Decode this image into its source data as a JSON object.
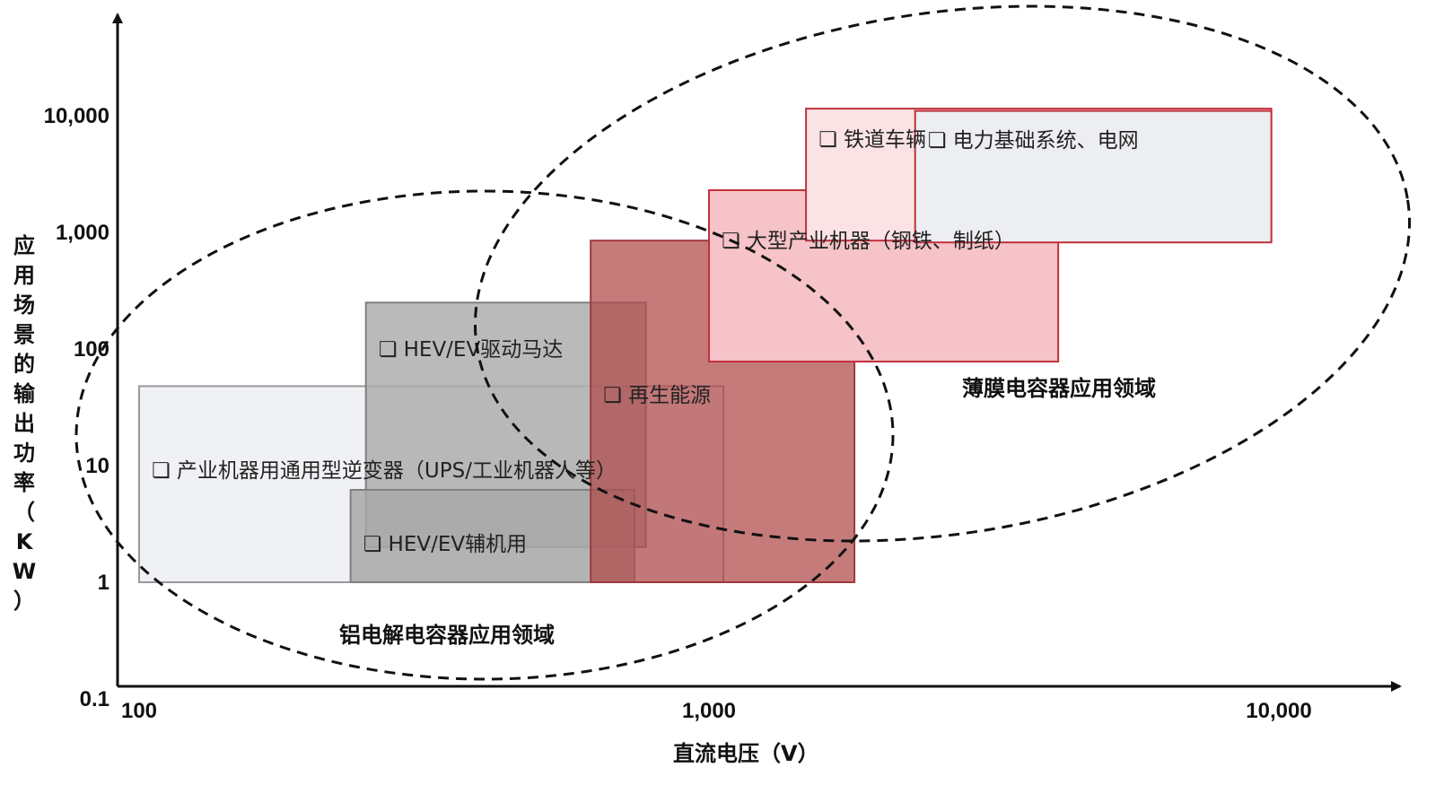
{
  "chart_data": {
    "type": "region-map",
    "xlabel": "直流电压（V）",
    "ylabel": "应用场景的输出功率（KW）",
    "x_scale": "log",
    "y_scale": "log",
    "xlim": [
      100,
      10000
    ],
    "ylim": [
      0.1,
      10000
    ],
    "x_ticks": [
      {
        "value": 100,
        "label": "100"
      },
      {
        "value": 1000,
        "label": "1,000"
      },
      {
        "value": 10000,
        "label": "10,000"
      }
    ],
    "y_ticks": [
      {
        "value": 0.1,
        "label": "0.1"
      },
      {
        "value": 1,
        "label": "1"
      },
      {
        "value": 10,
        "label": "10"
      },
      {
        "value": 100,
        "label": "100"
      },
      {
        "value": 1000,
        "label": "1,000"
      },
      {
        "value": 10000,
        "label": "10,000"
      }
    ],
    "applications": [
      {
        "id": "inverter",
        "label": "产业机器用通用型逆变器（UPS/工业机器人等）",
        "x": [
          100,
          1060
        ],
        "y": [
          1,
          48
        ],
        "fill": "#eef0f3",
        "stroke": "#999999",
        "opacity": 0.9
      },
      {
        "id": "hev-drive",
        "label": "HEV/EV驱动马达",
        "x": [
          250,
          775
        ],
        "y": [
          2.0,
          250
        ],
        "fill": "#aeaeae",
        "stroke": "#808080",
        "opacity": 0.85
      },
      {
        "id": "hev-aux",
        "label": "HEV/EV辅机用",
        "x": [
          235,
          740
        ],
        "y": [
          1,
          6.2
        ],
        "fill": "#a8a8a8",
        "stroke": "#808080",
        "opacity": 0.85
      },
      {
        "id": "renewable",
        "label": "再生能源",
        "x": [
          620,
          1800
        ],
        "y": [
          1,
          850
        ],
        "fill": "#b04848",
        "stroke": "#a0393c",
        "opacity": 0.72
      },
      {
        "id": "large-machine",
        "label": "大型产业机器（钢铁、制纸）",
        "x": [
          1000,
          4100
        ],
        "y": [
          78,
          2300
        ],
        "fill": "#f5c3c8",
        "stroke": "#c0303c",
        "opacity": 1
      },
      {
        "id": "railway",
        "label": "铁道车辆",
        "x": [
          1480,
          9700
        ],
        "y": [
          850,
          11500
        ],
        "fill": "#fbe3e5",
        "stroke": "#c0303c",
        "opacity": 1
      },
      {
        "id": "power-grid",
        "label": "电力基础系统、电网",
        "x": [
          2300,
          9700
        ],
        "y": [
          820,
          11000
        ],
        "fill": "#eceef1",
        "stroke": "#c0303c",
        "opacity": 1
      }
    ],
    "regions": [
      {
        "id": "al-electrolytic",
        "label": "铝电解电容器应用领域"
      },
      {
        "id": "film",
        "label": "薄膜电容器应用领域"
      }
    ]
  }
}
